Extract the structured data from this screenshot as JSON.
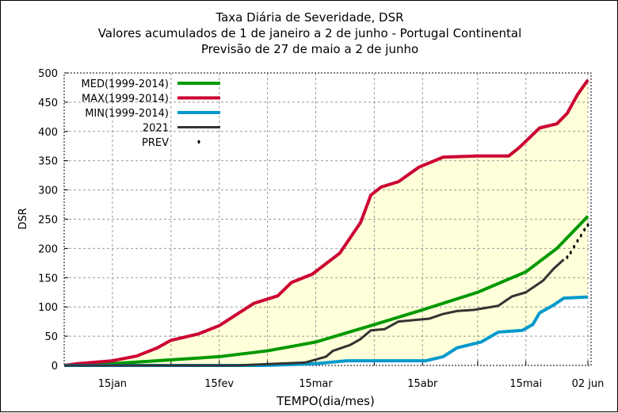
{
  "chart_data": {
    "type": "line",
    "title": [
      "Taxa Diária de Severidade, DSR",
      "Valores acumulados de 1 de janeiro a  2 de junho - Portugal Continental",
      "Previsão de 27 de maio a  2 de junho"
    ],
    "xlabel": "TEMPO(dia/mes)",
    "ylabel": "DSR",
    "xlim": [
      1,
      153
    ],
    "ylim": [
      0,
      500
    ],
    "yticks": [
      0,
      50,
      100,
      150,
      200,
      250,
      300,
      350,
      400,
      450,
      500
    ],
    "xticks": [
      {
        "day": 15,
        "label": "15jan"
      },
      {
        "day": 46,
        "label": "15fev"
      },
      {
        "day": 74,
        "label": "15mar"
      },
      {
        "day": 105,
        "label": "15abr"
      },
      {
        "day": 135,
        "label": "15mai"
      },
      {
        "day": 153,
        "label": "02 jun"
      }
    ],
    "minor_ticks": [
      32,
      60,
      91,
      121
    ],
    "grid": true,
    "legend": "top-left",
    "x_units": "day of year",
    "series": [
      {
        "name": "MED(1999-2014)",
        "color": "#009900",
        "points": [
          [
            1,
            0
          ],
          [
            15,
            3
          ],
          [
            46,
            15
          ],
          [
            60,
            25
          ],
          [
            74,
            40
          ],
          [
            90,
            68
          ],
          [
            105,
            95
          ],
          [
            121,
            125
          ],
          [
            135,
            160
          ],
          [
            144,
            200
          ],
          [
            153,
            255
          ]
        ]
      },
      {
        "name": "MAX(1999-2014)",
        "color": "#cc0033",
        "points": [
          [
            1,
            0
          ],
          [
            5,
            3
          ],
          [
            15,
            8
          ],
          [
            22,
            16
          ],
          [
            28,
            30
          ],
          [
            32,
            43
          ],
          [
            40,
            54
          ],
          [
            46,
            68
          ],
          [
            56,
            106
          ],
          [
            63,
            119
          ],
          [
            67,
            142
          ],
          [
            73,
            156
          ],
          [
            81,
            192
          ],
          [
            87,
            244
          ],
          [
            90,
            291
          ],
          [
            93,
            305
          ],
          [
            98,
            314
          ],
          [
            104,
            339
          ],
          [
            111,
            356
          ],
          [
            121,
            358
          ],
          [
            130,
            358
          ],
          [
            133,
            372
          ],
          [
            139,
            406
          ],
          [
            144,
            413
          ],
          [
            147,
            431
          ],
          [
            150,
            463
          ],
          [
            153,
            488
          ]
        ]
      },
      {
        "name": "MIN(1999-2014)",
        "color": "#0099cc",
        "points": [
          [
            1,
            0
          ],
          [
            59,
            0
          ],
          [
            74,
            3
          ],
          [
            83,
            8
          ],
          [
            106,
            8
          ],
          [
            111,
            15
          ],
          [
            115,
            30
          ],
          [
            122,
            40
          ],
          [
            127,
            57
          ],
          [
            134,
            60
          ],
          [
            137,
            70
          ],
          [
            139,
            90
          ],
          [
            143,
            103
          ],
          [
            146,
            115
          ],
          [
            153,
            117
          ]
        ]
      },
      {
        "name": "2021",
        "color": "#333333",
        "points": [
          [
            1,
            0
          ],
          [
            51,
            0
          ],
          [
            63,
            3
          ],
          [
            71,
            5
          ],
          [
            77,
            15
          ],
          [
            79,
            25
          ],
          [
            84,
            35
          ],
          [
            87,
            45
          ],
          [
            90,
            60
          ],
          [
            94,
            62
          ],
          [
            98,
            75
          ],
          [
            107,
            80
          ],
          [
            111,
            88
          ],
          [
            115,
            93
          ],
          [
            120,
            95
          ],
          [
            127,
            102
          ],
          [
            131,
            118
          ],
          [
            135,
            125
          ],
          [
            140,
            145
          ],
          [
            143,
            165
          ],
          [
            146,
            181
          ]
        ]
      },
      {
        "name": "PREV",
        "color": "#000000",
        "points": [
          [
            147,
            185
          ],
          [
            148,
            193
          ],
          [
            149,
            203
          ],
          [
            150,
            213
          ],
          [
            151,
            222
          ],
          [
            152,
            232
          ],
          [
            153,
            240
          ]
        ]
      }
    ]
  }
}
